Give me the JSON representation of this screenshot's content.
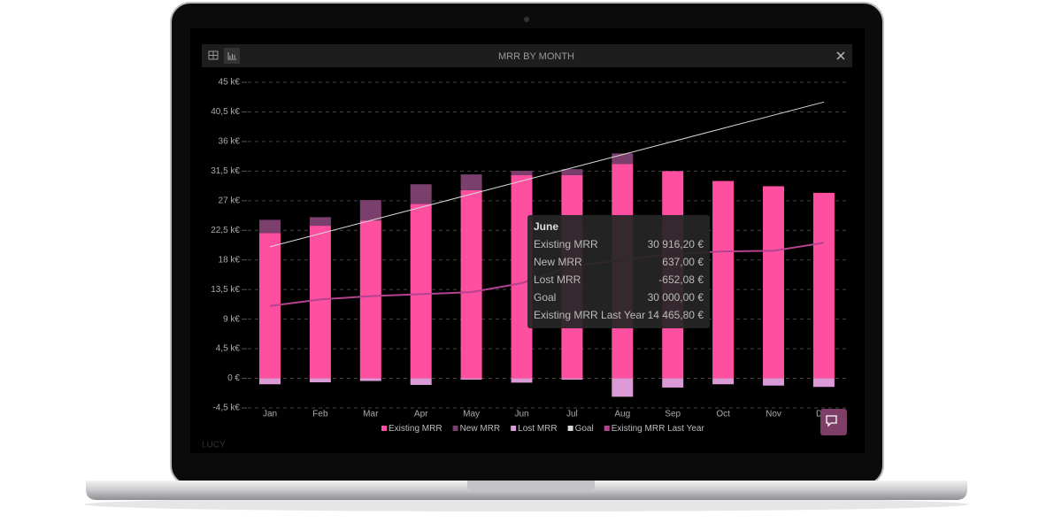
{
  "window": {
    "title": "MRR BY MONTH",
    "footer_label": "LUCY"
  },
  "tooltip": {
    "title": "June",
    "rows": [
      {
        "label": "Existing MRR",
        "value": "30 916,20 €"
      },
      {
        "label": "New MRR",
        "value": "637,00 €"
      },
      {
        "label": "Lost MRR",
        "value": "-652,08 €"
      },
      {
        "label": "Goal",
        "value": "30 000,00 €"
      },
      {
        "label": "Existing MRR Last Year",
        "value": "14 465,80 €"
      }
    ]
  },
  "chart_data": {
    "type": "bar",
    "stacked": true,
    "categories": [
      "Jan",
      "Feb",
      "Mar",
      "Apr",
      "May",
      "Jun",
      "Jul",
      "Aug",
      "Sep",
      "Oct",
      "Nov",
      "Dec"
    ],
    "series": [
      {
        "name": "Existing MRR",
        "color": "#ff4fa0",
        "type": "bar",
        "values": [
          22100,
          23200,
          24000,
          26500,
          28600,
          30916.2,
          30900,
          32600,
          31500,
          30000,
          29200,
          28200
        ]
      },
      {
        "name": "New MRR",
        "color": "#7a3f6c",
        "type": "bar",
        "values": [
          2000,
          1300,
          3100,
          3000,
          2400,
          637,
          900,
          1600,
          0,
          0,
          0,
          0
        ]
      },
      {
        "name": "Lost MRR",
        "color": "#d99ad6",
        "type": "bar",
        "values": [
          -900,
          -600,
          -400,
          -1000,
          -200,
          -652.08,
          -200,
          -2800,
          -1400,
          -900,
          -1100,
          -1300
        ]
      },
      {
        "name": "Goal",
        "color": "#d8d8d8",
        "type": "line",
        "values": [
          20000,
          22000,
          24000,
          26000,
          28000,
          30000,
          32000,
          34000,
          36000,
          38000,
          40000,
          42000
        ]
      },
      {
        "name": "Existing MRR Last Year",
        "color": "#b4428f",
        "type": "line",
        "values": [
          11000,
          12000,
          12500,
          12800,
          13100,
          14465.8,
          17100,
          18000,
          18900,
          19300,
          19400,
          20600
        ]
      }
    ],
    "ylim": [
      -4500,
      45000
    ],
    "yticks": [
      {
        "value": -4500,
        "label": "-4,5 k€"
      },
      {
        "value": 0,
        "label": "0 €"
      },
      {
        "value": 4500,
        "label": "4,5 k€"
      },
      {
        "value": 9000,
        "label": "9 k€"
      },
      {
        "value": 13500,
        "label": "13,5 k€"
      },
      {
        "value": 18000,
        "label": "18 k€"
      },
      {
        "value": 22500,
        "label": "22,5 k€"
      },
      {
        "value": 27000,
        "label": "27 k€"
      },
      {
        "value": 31500,
        "label": "31,5 k€"
      },
      {
        "value": 36000,
        "label": "36 k€"
      },
      {
        "value": 40500,
        "label": "40,5 k€"
      },
      {
        "value": 45000,
        "label": "45 k€"
      }
    ],
    "grid": true,
    "legend": "bottom"
  }
}
